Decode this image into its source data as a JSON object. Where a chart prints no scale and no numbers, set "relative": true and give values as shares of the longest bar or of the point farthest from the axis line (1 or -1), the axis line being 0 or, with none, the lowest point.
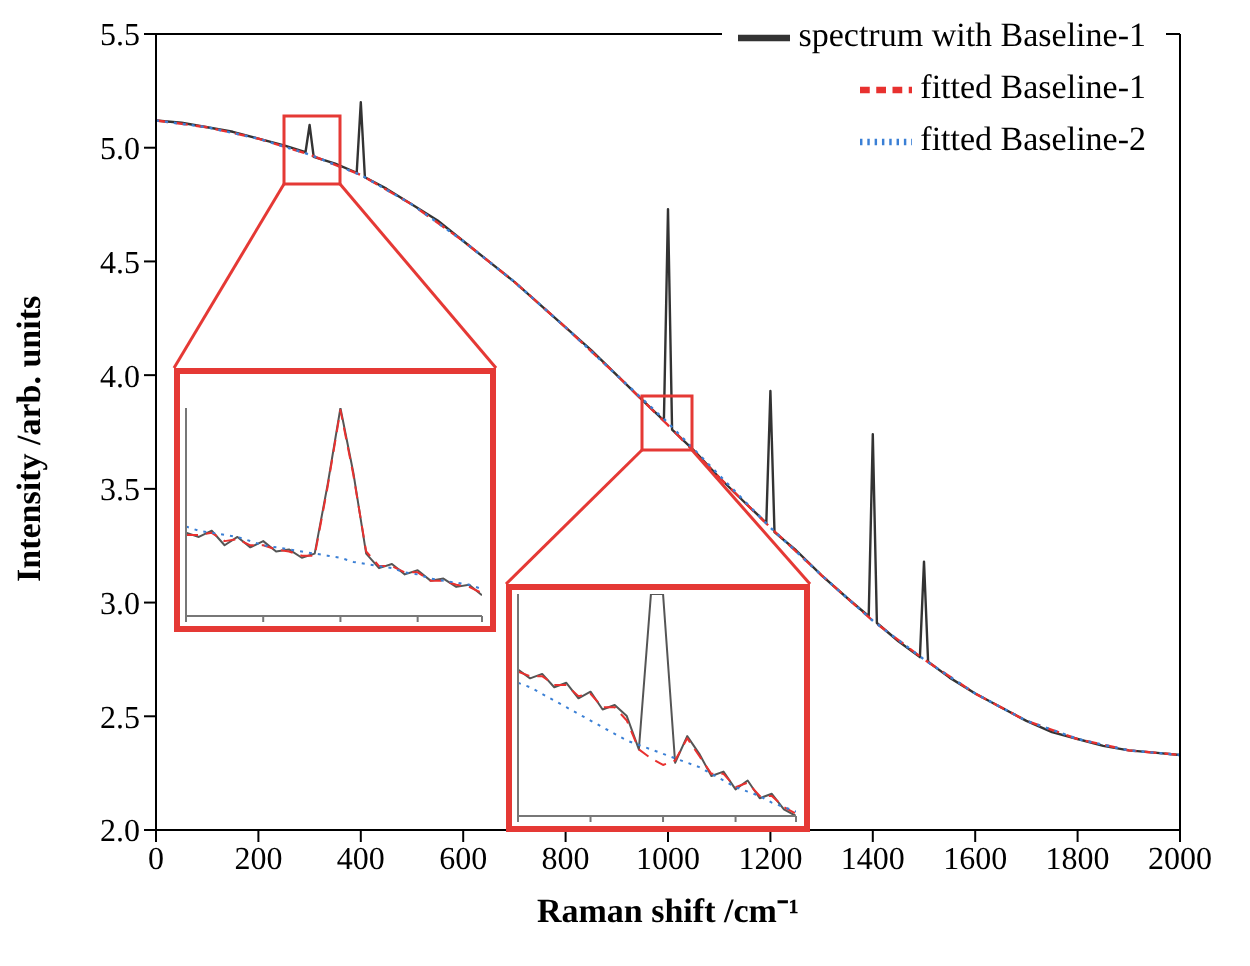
{
  "chart_data": [
    {
      "type": "line",
      "xlabel": "Raman shift /cm⁻¹",
      "ylabel": "Intensity /arb. units",
      "xlim": [
        0,
        2000
      ],
      "ylim": [
        2.0,
        5.5
      ],
      "xticks": [
        0,
        200,
        400,
        600,
        800,
        1000,
        1200,
        1400,
        1600,
        1800,
        2000
      ],
      "yticks": [
        {
          "value": 2.0,
          "label": "2.0"
        },
        {
          "value": 2.5,
          "label": "2.5"
        },
        {
          "value": 3.0,
          "label": "3.0"
        },
        {
          "value": 3.5,
          "label": "3.5"
        },
        {
          "value": 4.0,
          "label": "4.0"
        },
        {
          "value": 4.5,
          "label": "4.5"
        },
        {
          "value": 5.0,
          "label": "5.0"
        },
        {
          "value": 5.5,
          "label": "5.5"
        }
      ],
      "legend": "top right",
      "series": [
        {
          "name": "spectrum with Baseline-1",
          "color": "#333333",
          "line_style": "solid",
          "x": [
            0,
            50,
            100,
            150,
            200,
            250,
            292,
            300,
            308,
            350,
            392,
            400,
            408,
            450,
            500,
            550,
            600,
            650,
            700,
            750,
            800,
            850,
            900,
            950,
            992,
            1000,
            1008,
            1050,
            1100,
            1150,
            1192,
            1200,
            1208,
            1250,
            1300,
            1350,
            1392,
            1400,
            1408,
            1450,
            1492,
            1500,
            1508,
            1550,
            1600,
            1650,
            1700,
            1750,
            1800,
            1850,
            1900,
            1950,
            2000
          ],
          "values": [
            5.12,
            5.11,
            5.09,
            5.07,
            5.04,
            5.01,
            4.98,
            5.1,
            4.96,
            4.93,
            4.89,
            5.2,
            4.87,
            4.82,
            4.75,
            4.68,
            4.59,
            4.5,
            4.41,
            4.31,
            4.21,
            4.11,
            4.0,
            3.89,
            3.8,
            4.73,
            3.76,
            3.67,
            3.55,
            3.44,
            3.35,
            3.93,
            3.31,
            3.23,
            3.12,
            3.02,
            2.94,
            3.74,
            2.91,
            2.83,
            2.76,
            3.18,
            2.74,
            2.67,
            2.6,
            2.54,
            2.48,
            2.43,
            2.4,
            2.37,
            2.35,
            2.34,
            2.33
          ]
        },
        {
          "name": "fitted Baseline-1",
          "color": "#e8312f",
          "line_style": "dashed",
          "x": [
            0,
            100,
            200,
            300,
            400,
            500,
            600,
            700,
            800,
            900,
            1000,
            1100,
            1200,
            1300,
            1400,
            1500,
            1600,
            1700,
            1800,
            1900,
            2000
          ],
          "values": [
            5.12,
            5.09,
            5.04,
            4.97,
            4.88,
            4.75,
            4.59,
            4.41,
            4.21,
            4.0,
            3.78,
            3.55,
            3.33,
            3.12,
            2.92,
            2.75,
            2.6,
            2.48,
            2.4,
            2.35,
            2.33
          ]
        },
        {
          "name": "fitted Baseline-2",
          "color": "#3a7fd5",
          "line_style": "dotted",
          "x": [
            0,
            100,
            200,
            300,
            400,
            500,
            600,
            700,
            800,
            900,
            1000,
            1100,
            1200,
            1300,
            1400,
            1500,
            1600,
            1700,
            1800,
            1900,
            2000
          ],
          "values": [
            5.12,
            5.09,
            5.04,
            4.97,
            4.88,
            4.75,
            4.59,
            4.41,
            4.21,
            4.0,
            3.79,
            3.56,
            3.33,
            3.12,
            2.92,
            2.75,
            2.6,
            2.48,
            2.4,
            2.35,
            2.33
          ]
        }
      ]
    },
    {
      "type": "line",
      "relative": true,
      "categories": [
        null,
        null,
        null,
        null,
        null,
        null,
        null,
        null,
        null,
        null,
        null,
        null,
        null,
        null,
        null,
        null,
        null,
        null,
        null,
        null,
        null,
        null,
        null,
        null
      ],
      "series": [
        {
          "color": "#555555",
          "line_style": "solid",
          "values": [
            0.4,
            0.38,
            0.41,
            0.34,
            0.38,
            0.33,
            0.36,
            0.31,
            0.32,
            0.28,
            0.3,
            0.63,
            1,
            0.69,
            0.3,
            0.23,
            0.25,
            0.2,
            0.22,
            0.17,
            0.18,
            0.14,
            0.15,
            0.1
          ]
        },
        {
          "color": "#e8312f",
          "line_style": "dashed",
          "values": [
            0.39,
            0.39,
            0.4,
            0.36,
            0.37,
            0.34,
            0.34,
            0.32,
            0.31,
            0.29,
            0.29,
            0.62,
            0.99,
            0.68,
            0.31,
            0.24,
            0.24,
            0.21,
            0.21,
            0.17,
            0.17,
            0.15,
            0.14,
            0.11
          ]
        },
        {
          "color": "#3a7fd5",
          "line_style": "dotted",
          "values": [
            0.43,
            0.41,
            0.4,
            0.39,
            0.38,
            0.36,
            0.34,
            0.33,
            0.32,
            0.31,
            0.3,
            0.29,
            0.28,
            0.26,
            0.25,
            0.24,
            0.23,
            0.21,
            0.2,
            0.18,
            0.17,
            0.16,
            0.15,
            0.13
          ]
        }
      ]
    },
    {
      "type": "line",
      "relative": true,
      "categories": [
        null,
        null,
        null,
        null,
        null,
        null,
        null,
        null,
        null,
        null,
        null,
        null,
        null,
        null,
        null,
        null,
        null,
        null,
        null,
        null,
        null,
        null,
        null,
        null
      ],
      "series": [
        {
          "color": "#555555",
          "line_style": "solid",
          "values": [
            0.66,
            0.62,
            0.64,
            0.58,
            0.6,
            0.53,
            0.56,
            0.48,
            0.5,
            0.45,
            0.3,
            1.0,
            1.0,
            0.24,
            0.36,
            0.28,
            0.18,
            0.2,
            0.12,
            0.16,
            0.08,
            0.1,
            0.03,
            0.0
          ]
        },
        {
          "color": "#e8312f",
          "line_style": "dashed",
          "values": [
            0.65,
            0.63,
            0.63,
            0.59,
            0.59,
            0.54,
            0.55,
            0.49,
            0.49,
            0.43,
            0.3,
            0.26,
            0.23,
            0.25,
            0.35,
            0.27,
            0.19,
            0.19,
            0.13,
            0.15,
            0.09,
            0.09,
            0.04,
            0.01
          ]
        },
        {
          "color": "#3a7fd5",
          "line_style": "dotted",
          "values": [
            0.6,
            0.58,
            0.55,
            0.52,
            0.49,
            0.46,
            0.43,
            0.4,
            0.37,
            0.34,
            0.32,
            0.3,
            0.28,
            0.26,
            0.24,
            0.22,
            0.19,
            0.16,
            0.13,
            0.11,
            0.09,
            0.06,
            0.04,
            0.02
          ]
        }
      ]
    }
  ]
}
